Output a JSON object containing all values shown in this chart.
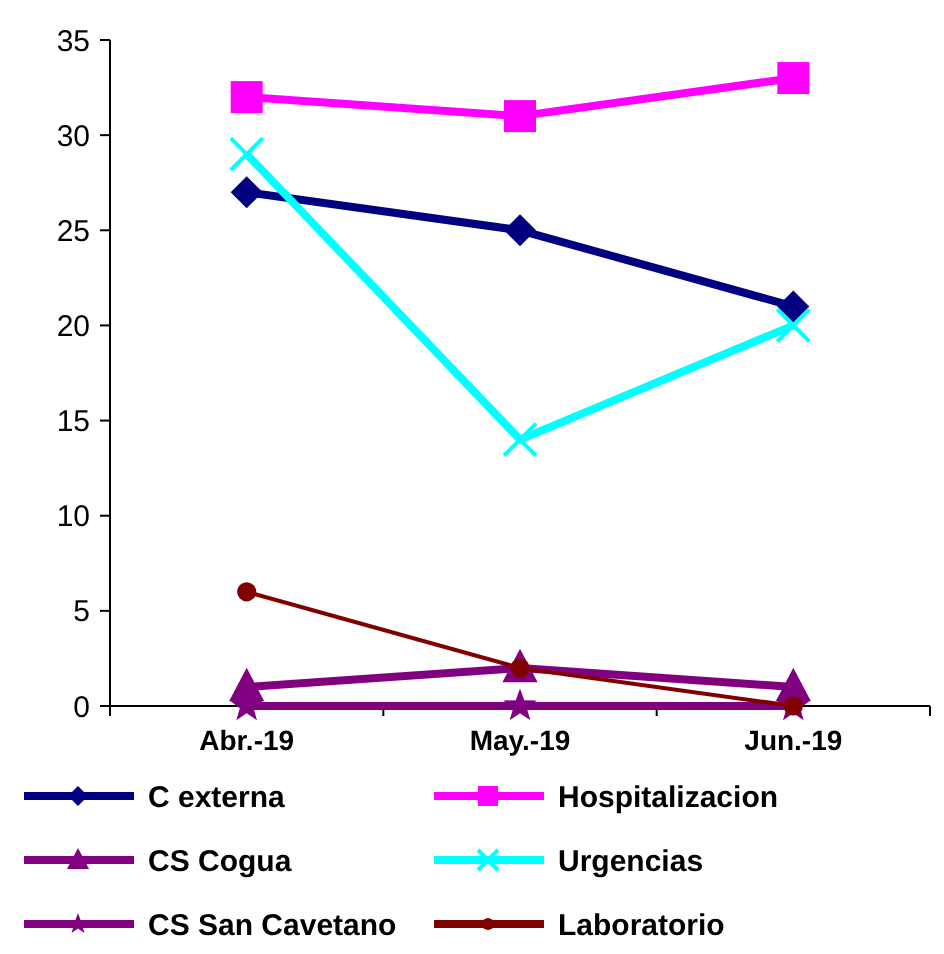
{
  "chart_data": {
    "type": "line",
    "categories": [
      "Abr.-19",
      "May.-19",
      "Jun.-19"
    ],
    "ylim": [
      0,
      35
    ],
    "yticks": [
      0,
      5,
      10,
      15,
      20,
      25,
      30,
      35
    ],
    "grid": false,
    "legend": "bottom",
    "series": [
      {
        "name": "C externa",
        "color": "#000080",
        "marker": "diamond",
        "values": [
          27,
          25,
          21
        ]
      },
      {
        "name": "Hospitalizacion",
        "color": "#ff00ff",
        "marker": "square",
        "values": [
          32,
          31,
          33
        ]
      },
      {
        "name": "CS Cogua",
        "color": "#800080",
        "marker": "triangle",
        "values": [
          1,
          2,
          1
        ]
      },
      {
        "name": "Urgencias",
        "color": "#00ffff",
        "marker": "cross",
        "values": [
          29,
          14,
          20
        ]
      },
      {
        "name": "CS San Cavetano",
        "color": "#800080",
        "marker": "star",
        "values": [
          0,
          0,
          0
        ]
      },
      {
        "name": "Laboratorio",
        "color": "#800000",
        "marker": "circle",
        "values": [
          6,
          2,
          0
        ]
      }
    ]
  }
}
